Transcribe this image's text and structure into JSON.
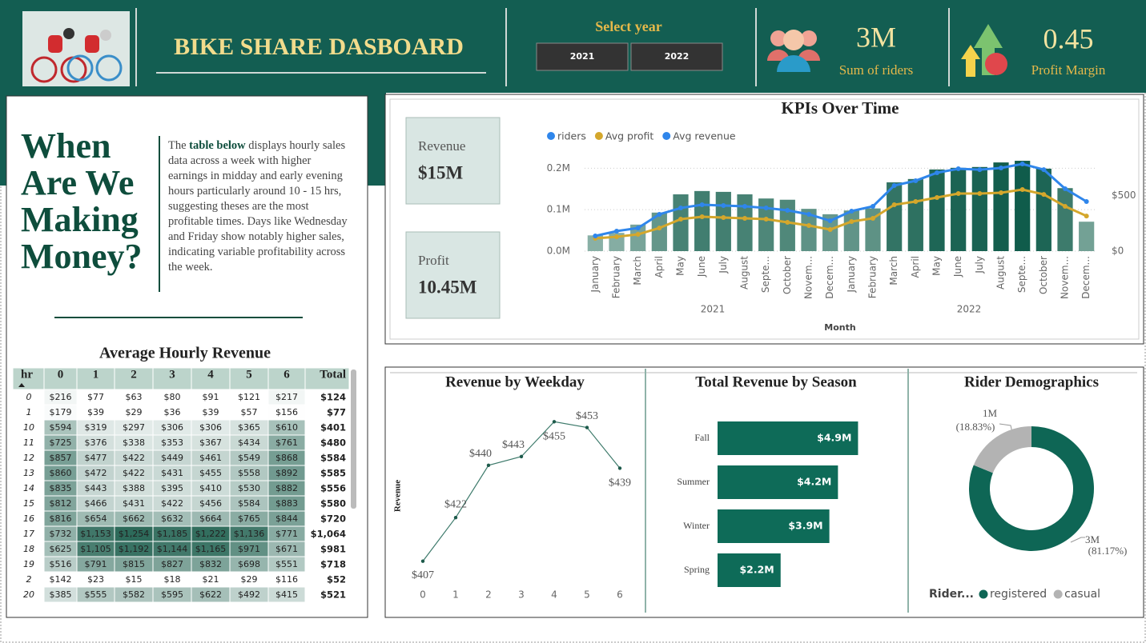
{
  "header": {
    "title": "BIKE SHARE DASBOARD",
    "year_filter": {
      "label": "Select year",
      "options": [
        "2021",
        "2022"
      ]
    },
    "kpis": [
      {
        "value": "3M",
        "label": "Sum of riders"
      },
      {
        "value": "0.45",
        "label": "Profit Margin"
      }
    ]
  },
  "cards": [
    {
      "label": "Revenue",
      "value": "$15M"
    },
    {
      "label": "Profit",
      "value": "10.45M"
    }
  ],
  "intro": {
    "heading": "When Are We Making Money?",
    "text": [
      "The ",
      "table below",
      " displays hourly sales data across a week with higher earnings in midday and early evening hours particularly around 10 - 15 hrs, suggesting theses are the most profitable times. Days like Wednesday and Friday show notably higher sales, indicating variable profitability across the week."
    ]
  },
  "table": {
    "title": "Average Hourly Revenue",
    "columns": [
      "hr",
      "0",
      "1",
      "2",
      "3",
      "4",
      "5",
      "6",
      "Total"
    ],
    "rows": [
      [
        "0",
        "$216",
        "$77",
        "$63",
        "$80",
        "$91",
        "$121",
        "$217",
        "$124"
      ],
      [
        "1",
        "$179",
        "$39",
        "$29",
        "$36",
        "$39",
        "$57",
        "$156",
        "$77"
      ],
      [
        "10",
        "$594",
        "$319",
        "$297",
        "$306",
        "$306",
        "$365",
        "$610",
        "$401"
      ],
      [
        "11",
        "$725",
        "$376",
        "$338",
        "$353",
        "$367",
        "$434",
        "$761",
        "$480"
      ],
      [
        "12",
        "$857",
        "$477",
        "$422",
        "$449",
        "$461",
        "$549",
        "$868",
        "$584"
      ],
      [
        "13",
        "$860",
        "$472",
        "$422",
        "$431",
        "$455",
        "$558",
        "$892",
        "$585"
      ],
      [
        "14",
        "$835",
        "$443",
        "$388",
        "$395",
        "$410",
        "$530",
        "$882",
        "$556"
      ],
      [
        "15",
        "$812",
        "$466",
        "$431",
        "$422",
        "$456",
        "$584",
        "$883",
        "$580"
      ],
      [
        "16",
        "$816",
        "$654",
        "$662",
        "$632",
        "$664",
        "$765",
        "$844",
        "$720"
      ],
      [
        "17",
        "$732",
        "$1,153",
        "$1,254",
        "$1,185",
        "$1,222",
        "$1,136",
        "$771",
        "$1,064"
      ],
      [
        "18",
        "$625",
        "$1,105",
        "$1,192",
        "$1,144",
        "$1,165",
        "$971",
        "$671",
        "$981"
      ],
      [
        "19",
        "$516",
        "$791",
        "$815",
        "$827",
        "$832",
        "$698",
        "$551",
        "$718"
      ],
      [
        "2",
        "$142",
        "$23",
        "$15",
        "$18",
        "$21",
        "$29",
        "$116",
        "$52"
      ],
      [
        "20",
        "$385",
        "$555",
        "$582",
        "$595",
        "$622",
        "$492",
        "$415",
        "$521"
      ]
    ]
  },
  "chart_data": [
    {
      "type": "combo",
      "title": "KPIs Over Time",
      "x_label": "Month",
      "categories": [
        "January",
        "February",
        "March",
        "April",
        "May",
        "June",
        "July",
        "August",
        "Septe...",
        "October",
        "Novem...",
        "Decem...",
        "January",
        "February",
        "March",
        "April",
        "May",
        "June",
        "July",
        "August",
        "Septe...",
        "October",
        "Novem...",
        "Decem..."
      ],
      "x_groups": [
        "2021",
        "2022"
      ],
      "series": [
        {
          "name": "riders",
          "kind": "bar",
          "colors": [
            "#a3c2b9",
            "#0f5b4a"
          ],
          "legend_color": "#2f86eb",
          "values": [
            38000,
            44000,
            64000,
            93000,
            137000,
            145000,
            143000,
            137000,
            127000,
            124000,
            102000,
            89000,
            98000,
            103000,
            166000,
            174000,
            197000,
            201000,
            203000,
            214000,
            218000,
            199000,
            152000,
            71000
          ]
        },
        {
          "name": "Avg profit",
          "kind": "line",
          "axis": "y2",
          "color": "#d4a72c",
          "legend_color": "#d4a72c",
          "values": [
            115,
            129,
            151,
            208,
            288,
            309,
            302,
            295,
            288,
            259,
            230,
            194,
            266,
            295,
            417,
            446,
            482,
            518,
            518,
            525,
            554,
            510,
            403,
            316
          ]
        },
        {
          "name": "Avg revenue",
          "kind": "line",
          "axis": "y2",
          "color": "#2f86eb",
          "legend_color": "#2f86eb",
          "values": [
            137,
            180,
            208,
            331,
            388,
            417,
            410,
            403,
            388,
            367,
            331,
            273,
            360,
            403,
            590,
            633,
            705,
            741,
            733,
            748,
            784,
            733,
            561,
            446
          ]
        }
      ],
      "ylim": [
        0,
        220000
      ],
      "yticks": [
        {
          "value": 0,
          "label": "0.0M"
        },
        {
          "value": 100000,
          "label": "0.1M"
        },
        {
          "value": 200000,
          "label": "0.2M"
        }
      ],
      "y2lim": [
        0,
        820
      ],
      "y2ticks": [
        {
          "value": 0,
          "label": "$0"
        },
        {
          "value": 500,
          "label": "$500"
        }
      ],
      "grid": true
    },
    {
      "type": "line",
      "title": "Revenue by Weekday",
      "y_label": "Revenue",
      "x": [
        0,
        1,
        2,
        3,
        4,
        5,
        6
      ],
      "values": [
        407,
        422,
        440,
        443,
        455,
        453,
        439
      ],
      "value_labels": [
        "$407",
        "$422",
        "$440",
        "$443",
        "$455",
        "$453",
        "$439"
      ],
      "xlim": [
        0,
        6
      ],
      "xticks": [
        0,
        1,
        2,
        3,
        4,
        5,
        6
      ],
      "ylim": [
        405,
        457
      ],
      "color": "#3d7a6b"
    },
    {
      "type": "barh",
      "title": "Total Revenue by Season",
      "categories": [
        "Fall",
        "Summer",
        "Winter",
        "Spring"
      ],
      "values": [
        4900000,
        4200000,
        3900000,
        2200000
      ],
      "value_labels": [
        "$4.9M",
        "$4.2M",
        "$3.9M",
        "$2.2M"
      ],
      "xlim": [
        0,
        5000000
      ],
      "color": "#0e6b58"
    },
    {
      "type": "donut",
      "title": "Rider Demographics",
      "legend_title": "Rider...",
      "categories": [
        "registered",
        "casual"
      ],
      "values": [
        81.17,
        18.83
      ],
      "value_labels": [
        "(81.17%)",
        "(18.83%)"
      ],
      "count_labels": [
        "3M",
        "1M"
      ],
      "colors": [
        "#0e6655",
        "#b3b3b3"
      ]
    }
  ]
}
